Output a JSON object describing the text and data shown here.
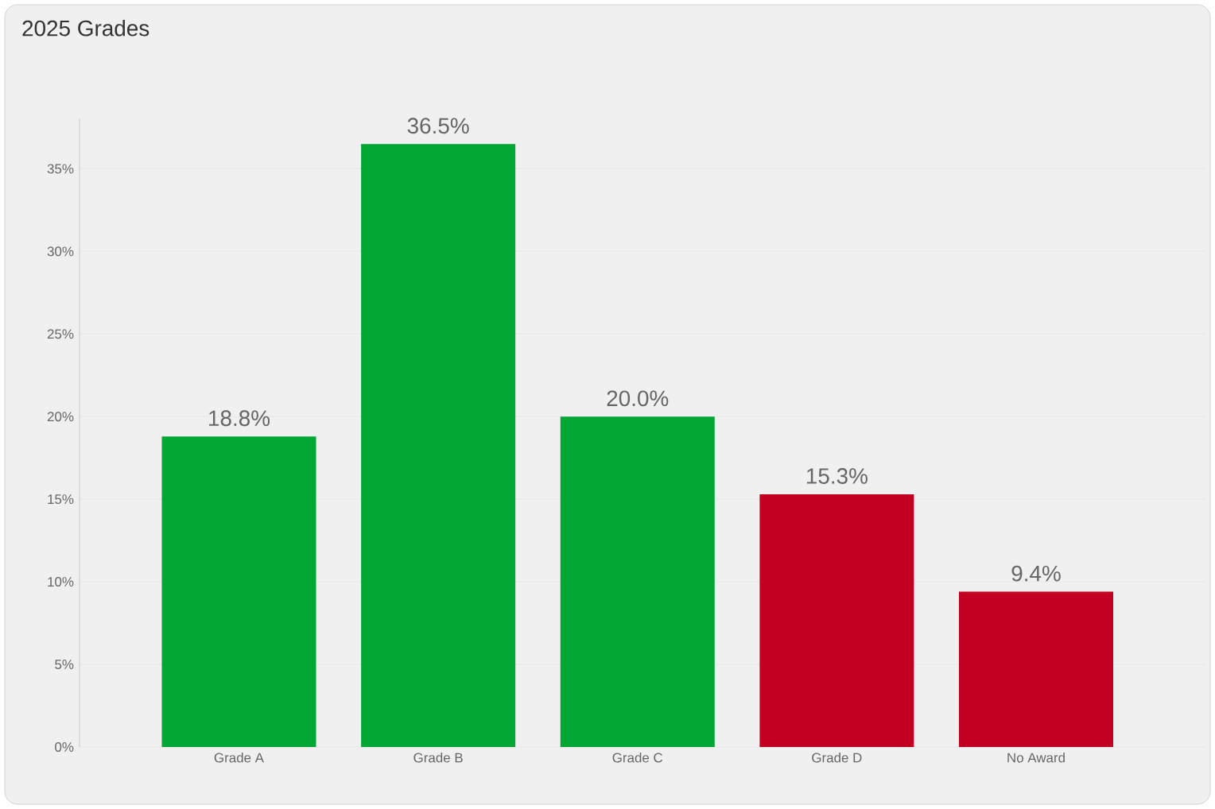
{
  "chart_data": {
    "type": "bar",
    "title": "2025 Grades",
    "categories": [
      "Grade A",
      "Grade B",
      "Grade C",
      "Grade D",
      "No Award"
    ],
    "values": [
      18.8,
      36.5,
      20.0,
      15.3,
      9.4
    ],
    "colors": [
      "#02a633",
      "#02a633",
      "#02a633",
      "#c20022",
      "#c20022"
    ],
    "value_labels": [
      "18.8%",
      "36.5%",
      "20.0%",
      "15.3%",
      "9.4%"
    ],
    "yticks": [
      {
        "value": 0,
        "label": "0%"
      },
      {
        "value": 5,
        "label": "5%"
      },
      {
        "value": 10,
        "label": "10%"
      },
      {
        "value": 15,
        "label": "15%"
      },
      {
        "value": 20,
        "label": "20%"
      },
      {
        "value": 25,
        "label": "25%"
      },
      {
        "value": 30,
        "label": "30%"
      },
      {
        "value": 35,
        "label": "35%"
      }
    ],
    "ylim": [
      0,
      38
    ],
    "grid": "y"
  }
}
